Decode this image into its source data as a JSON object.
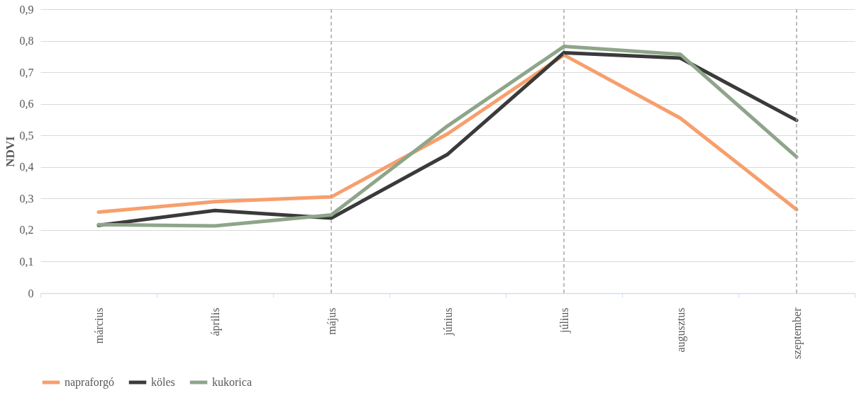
{
  "chart_data": {
    "type": "line",
    "ylabel": "NDVI",
    "categories": [
      "március",
      "április",
      "május",
      "június",
      "július",
      "augusztus",
      "szeptember"
    ],
    "series": [
      {
        "name": "napraforgó",
        "color": "#f79f6c",
        "values": [
          0.257,
          0.29,
          0.305,
          0.505,
          0.755,
          0.555,
          0.265
        ]
      },
      {
        "name": "köles",
        "color": "#3a3a3a",
        "values": [
          0.215,
          0.262,
          0.238,
          0.44,
          0.762,
          0.745,
          0.548
        ]
      },
      {
        "name": "kukorica",
        "color": "#8ea58a",
        "values": [
          0.217,
          0.213,
          0.248,
          0.53,
          0.782,
          0.757,
          0.432
        ]
      }
    ],
    "ylim": [
      0,
      0.9
    ],
    "yticks": [
      {
        "value": 0,
        "label": "0"
      },
      {
        "value": 0.1,
        "label": "0,1"
      },
      {
        "value": 0.2,
        "label": "0,2"
      },
      {
        "value": 0.3,
        "label": "0,3"
      },
      {
        "value": 0.4,
        "label": "0,4"
      },
      {
        "value": 0.5,
        "label": "0,5"
      },
      {
        "value": 0.6,
        "label": "0,6"
      },
      {
        "value": 0.7,
        "label": "0,7"
      },
      {
        "value": 0.8,
        "label": "0,8"
      },
      {
        "value": 0.9,
        "label": "0,9"
      }
    ],
    "ref_lines": [
      {
        "axis": "x",
        "value": "május",
        "color": "#a6a6a6",
        "line_style": "dashed"
      },
      {
        "axis": "x",
        "value": "július",
        "color": "#a6a6a6",
        "line_style": "dashed"
      },
      {
        "axis": "x",
        "value": "szeptember",
        "color": "#a6a6a6",
        "line_style": "dashed"
      }
    ],
    "grid": "y",
    "legend": "bottom",
    "marker": "none",
    "line_style": "solid"
  }
}
